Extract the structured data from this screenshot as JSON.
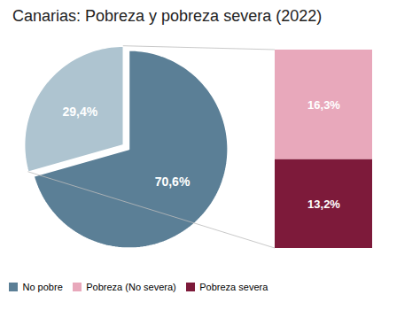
{
  "chart_data": [
    {
      "type": "pie",
      "title": "Canarias: Pobreza y pobreza severa (2022)",
      "categories": [
        "No pobre",
        null
      ],
      "values": [
        70.6,
        29.4
      ],
      "value_labels": [
        "70,6%",
        "29,4%"
      ],
      "colors": [
        "#5b7f96",
        "#aec4d0"
      ],
      "data_labels": true,
      "legend": "lower left"
    },
    {
      "type": "bar",
      "stacked": true,
      "categories": [
        null
      ],
      "series": [
        {
          "name": "Pobreza (No severa)",
          "color": "#e8a8bb",
          "values": [
            16.3
          ],
          "value_labels": [
            "16,3%"
          ]
        },
        {
          "name": "Pobreza severa",
          "color": "#7d1a3a",
          "values": [
            13.2
          ],
          "value_labels": [
            "13,2%"
          ]
        }
      ],
      "ylim": [
        0,
        29.5
      ],
      "tick_labels": false,
      "data_labels": true
    }
  ]
}
